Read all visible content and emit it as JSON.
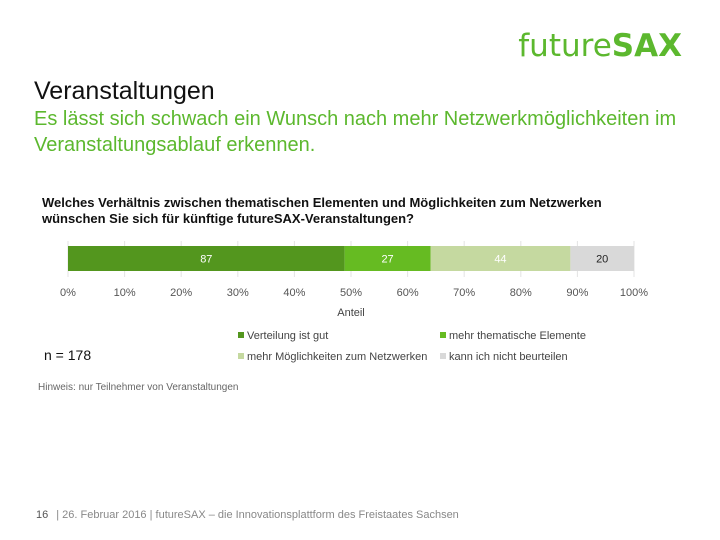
{
  "logo": {
    "light": "future",
    "bold": "SAX"
  },
  "title": "Veranstaltungen",
  "subtitle": "Es lässt sich schwach ein Wunsch nach mehr Netzwerkmöglichkeiten im Veranstaltungsablauf erkennen.",
  "question": "Welches Verhältnis zwischen thematischen Elementen und Möglichkeiten zum Netzwerken wünschen Sie sich für künftige futureSAX-Veranstaltungen?",
  "sample_size": "n = 178",
  "note": "Hinweis: nur Teilnehmer von Veranstaltungen",
  "footer": {
    "page": "16",
    "text": "| 26. Februar 2016 | futureSAX – die Innovationsplattform  des Freistaates Sachsen"
  },
  "chart_data": {
    "type": "bar",
    "orientation": "horizontal-stacked-100",
    "categories": [
      ""
    ],
    "series": [
      {
        "name": "Verteilung ist gut",
        "values": [
          87
        ],
        "color": "#53961e"
      },
      {
        "name": "mehr thematische Elemente",
        "values": [
          27
        ],
        "color": "#66bb22"
      },
      {
        "name": "mehr Möglichkeiten zum Netzwerken",
        "values": [
          44
        ],
        "color": "#c5d9a0"
      },
      {
        "name": "kann ich nicht beurteilen",
        "values": [
          20
        ],
        "color": "#d9d9d9"
      }
    ],
    "data_label_colors": [
      "#ffffff",
      "#ffffff",
      "#ffffff",
      "#222222"
    ],
    "xlabel": "Anteil",
    "ylabel": "",
    "xlim": [
      0,
      100
    ],
    "x_ticks": [
      "0%",
      "10%",
      "20%",
      "30%",
      "40%",
      "50%",
      "60%",
      "70%",
      "80%",
      "90%",
      "100%"
    ],
    "grid": true,
    "legend_position": "bottom-right"
  },
  "colors": {
    "brand": "#5cb82e"
  }
}
